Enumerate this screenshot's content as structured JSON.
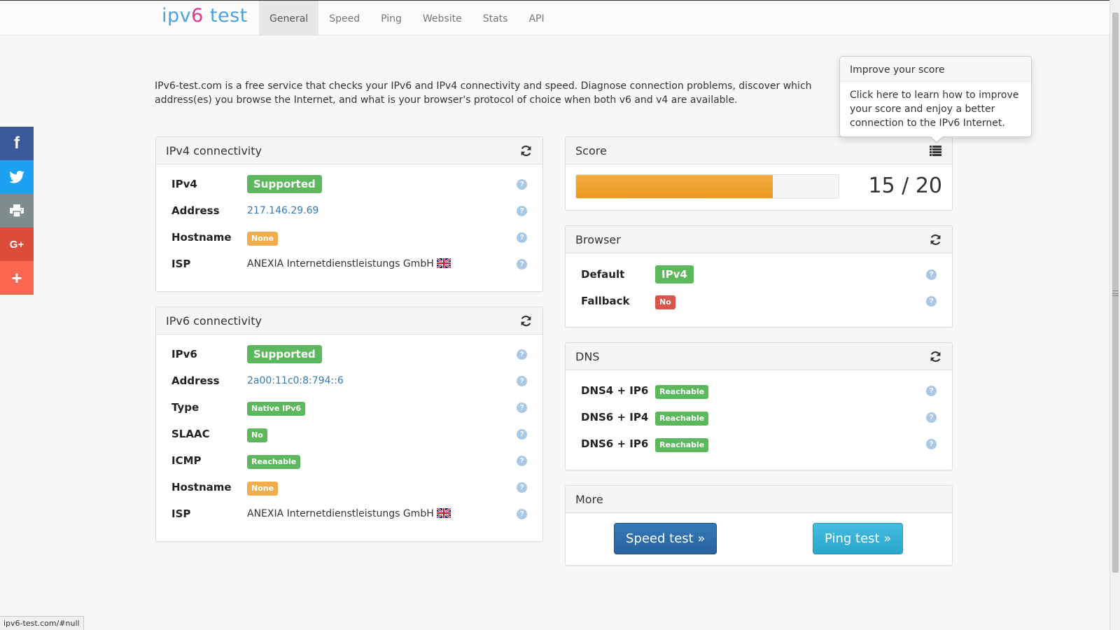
{
  "navbar": {
    "brand_part1": "ipv",
    "brand_part2": "6",
    "brand_part3": " test",
    "tabs": [
      {
        "label": "General",
        "active": true
      },
      {
        "label": "Speed"
      },
      {
        "label": "Ping"
      },
      {
        "label": "Website"
      },
      {
        "label": "Stats"
      },
      {
        "label": "API"
      }
    ]
  },
  "social": [
    "facebook-icon",
    "twitter-icon",
    "print-icon",
    "google-plus-icon",
    "plus-icon"
  ],
  "intro": "IPv6-test.com is a free service that checks your IPv6 and IPv4 connectivity and speed. Diagnose connection problems, discover which address(es) you browse the Internet, and what is your browser's protocol of choice when both v6 and v4 are available.",
  "popover": {
    "title": "Improve your score",
    "content": "Click here to learn how to improve your score and enjoy a better connection to the IPv6 Internet."
  },
  "ipv4": {
    "title": "IPv4 connectivity",
    "rows": [
      {
        "label": "IPv4",
        "value": "Supported"
      },
      {
        "label": "Address",
        "value": "217.146.29.69"
      },
      {
        "label": "Hostname",
        "value": "None"
      },
      {
        "label": "ISP",
        "value": "ANEXIA Internetdienstleistungs GmbH"
      }
    ]
  },
  "ipv6": {
    "title": "IPv6 connectivity",
    "rows": [
      {
        "label": "IPv6",
        "value": "Supported"
      },
      {
        "label": "Address",
        "value": "2a00:11c0:8:794::6"
      },
      {
        "label": "Type",
        "value": "Native IPv6"
      },
      {
        "label": "SLAAC",
        "value": "No"
      },
      {
        "label": "ICMP",
        "value": "Reachable"
      },
      {
        "label": "Hostname",
        "value": "None"
      },
      {
        "label": "ISP",
        "value": "ANEXIA Internetdienstleistungs GmbH"
      }
    ]
  },
  "score": {
    "title": "Score",
    "value": "15 / 20",
    "fraction": 0.75
  },
  "browser": {
    "title": "Browser",
    "rows": [
      {
        "label": "Default",
        "value": "IPv4"
      },
      {
        "label": "Fallback",
        "value": "No"
      }
    ]
  },
  "dns": {
    "title": "DNS",
    "rows": [
      {
        "label": "DNS4 + IP6",
        "value": "Reachable"
      },
      {
        "label": "DNS6 + IP4",
        "value": "Reachable"
      },
      {
        "label": "DNS6 + IP6",
        "value": "Reachable"
      }
    ]
  },
  "more": {
    "title": "More",
    "speed_button": "Speed test »",
    "ping_button": "Ping test »"
  },
  "help_glyph": "?",
  "statusbar": "ipv6-test.com/#null",
  "colors": {
    "success": "#5cb85c",
    "warning": "#f0ad4e",
    "danger": "#d9534f",
    "link": "#337ab7",
    "brand_blue": "#4aa3df",
    "brand_pink": "#e4358b"
  }
}
